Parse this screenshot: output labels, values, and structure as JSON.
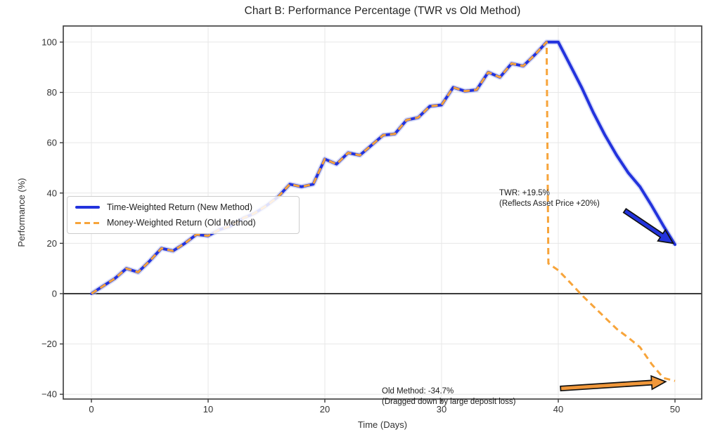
{
  "chart_data": {
    "type": "line",
    "title": "Chart B: Performance Percentage (TWR vs Old Method)",
    "xlabel": "Time (Days)",
    "ylabel": "Performance (%)",
    "xlim": [
      -2.41,
      52.29
    ],
    "ylim": [
      -41.9,
      106.4
    ],
    "grid": true,
    "zero_line": true,
    "legend_position": "center-left",
    "x_ticks": [
      {
        "v": 0,
        "label": "0"
      },
      {
        "v": 10,
        "label": "10"
      },
      {
        "v": 20,
        "label": "20"
      },
      {
        "v": 30,
        "label": "30"
      },
      {
        "v": 40,
        "label": "40"
      },
      {
        "v": 50,
        "label": "50"
      }
    ],
    "y_ticks": [
      {
        "v": 100,
        "label": "100"
      },
      {
        "v": 80,
        "label": "80"
      },
      {
        "v": 60,
        "label": "60"
      },
      {
        "v": 40,
        "label": "40"
      },
      {
        "v": 20,
        "label": "20"
      },
      {
        "v": 0,
        "label": "0"
      },
      {
        "v": -20,
        "label": "−20"
      },
      {
        "v": -40,
        "label": "−40"
      }
    ],
    "series": [
      {
        "name": "Time-Weighted Return (New Method)",
        "color": "#2333dd",
        "style": "solid",
        "width": 4,
        "halo_color": "#b7c0f2",
        "points": [
          [
            0,
            0
          ],
          [
            1,
            3
          ],
          [
            2,
            6
          ],
          [
            3,
            10
          ],
          [
            4,
            8.5
          ],
          [
            5,
            13
          ],
          [
            6,
            18
          ],
          [
            7,
            17
          ],
          [
            8,
            20
          ],
          [
            9,
            23.5
          ],
          [
            10,
            23
          ],
          [
            11,
            25.5
          ],
          [
            12,
            27
          ],
          [
            13,
            30
          ],
          [
            14,
            32
          ],
          [
            15,
            35
          ],
          [
            16,
            38.5
          ],
          [
            17,
            43.5
          ],
          [
            18,
            42.5
          ],
          [
            19,
            43.5
          ],
          [
            20,
            53.5
          ],
          [
            21,
            51.5
          ],
          [
            22,
            56
          ],
          [
            23,
            55
          ],
          [
            24,
            59
          ],
          [
            25,
            63
          ],
          [
            26,
            63.5
          ],
          [
            27,
            69
          ],
          [
            28,
            70
          ],
          [
            29,
            74.5
          ],
          [
            30,
            75
          ],
          [
            31,
            82
          ],
          [
            32,
            80.5
          ],
          [
            33,
            81
          ],
          [
            34,
            88
          ],
          [
            35,
            86
          ],
          [
            36,
            91.5
          ],
          [
            37,
            90.5
          ],
          [
            38,
            95
          ],
          [
            39,
            100
          ],
          [
            40,
            100
          ],
          [
            41,
            91
          ],
          [
            42,
            82
          ],
          [
            43,
            72
          ],
          [
            44,
            63
          ],
          [
            45,
            55
          ],
          [
            46,
            48
          ],
          [
            47,
            42.5
          ],
          [
            48,
            35
          ],
          [
            49,
            27
          ],
          [
            50,
            19.5
          ]
        ]
      },
      {
        "name": "Money-Weighted Return (Old Method)",
        "color": "#f7a43a",
        "style": "dashed",
        "width": 3,
        "points": [
          [
            0,
            0
          ],
          [
            1,
            3
          ],
          [
            2,
            6
          ],
          [
            3,
            10
          ],
          [
            4,
            8.5
          ],
          [
            5,
            13
          ],
          [
            6,
            18
          ],
          [
            7,
            17
          ],
          [
            8,
            20
          ],
          [
            9,
            23.5
          ],
          [
            10,
            23
          ],
          [
            11,
            25.5
          ],
          [
            12,
            27
          ],
          [
            13,
            30
          ],
          [
            14,
            32
          ],
          [
            15,
            35
          ],
          [
            16,
            38.5
          ],
          [
            17,
            43.5
          ],
          [
            18,
            42.5
          ],
          [
            19,
            43.5
          ],
          [
            20,
            53.5
          ],
          [
            21,
            51.5
          ],
          [
            22,
            56
          ],
          [
            23,
            55
          ],
          [
            24,
            59
          ],
          [
            25,
            63
          ],
          [
            26,
            63.5
          ],
          [
            27,
            69
          ],
          [
            28,
            70
          ],
          [
            29,
            74.5
          ],
          [
            30,
            75
          ],
          [
            31,
            82
          ],
          [
            32,
            80.5
          ],
          [
            33,
            81
          ],
          [
            34,
            88
          ],
          [
            35,
            86
          ],
          [
            36,
            91.5
          ],
          [
            37,
            90.5
          ],
          [
            38,
            95
          ],
          [
            39,
            100
          ],
          [
            39.15,
            12
          ],
          [
            40,
            9.3
          ],
          [
            41,
            4.5
          ],
          [
            42,
            -0.5
          ],
          [
            43,
            -5
          ],
          [
            44,
            -9.5
          ],
          [
            45,
            -14
          ],
          [
            46,
            -17.5
          ],
          [
            47,
            -21.3
          ],
          [
            48,
            -28
          ],
          [
            49,
            -33.5
          ],
          [
            50,
            -34.7
          ]
        ]
      }
    ],
    "annotations": [
      {
        "id": "twr",
        "lines": [
          "TWR: +19.5%",
          "(Reflects Asset Price +20%)"
        ]
      },
      {
        "id": "old",
        "lines": [
          "Old Method: -34.7%",
          "(Dragged down by large deposit loss)"
        ]
      }
    ],
    "arrows": [
      {
        "name": "twr-arrow",
        "color": "#2333dd",
        "from": [
          45.7,
          33.0
        ],
        "to": [
          49.85,
          20.0
        ]
      },
      {
        "name": "old-method-arrow",
        "color": "#f0973a",
        "from": [
          40.2,
          -37.7
        ],
        "to": [
          49.2,
          -35.0
        ]
      }
    ]
  }
}
